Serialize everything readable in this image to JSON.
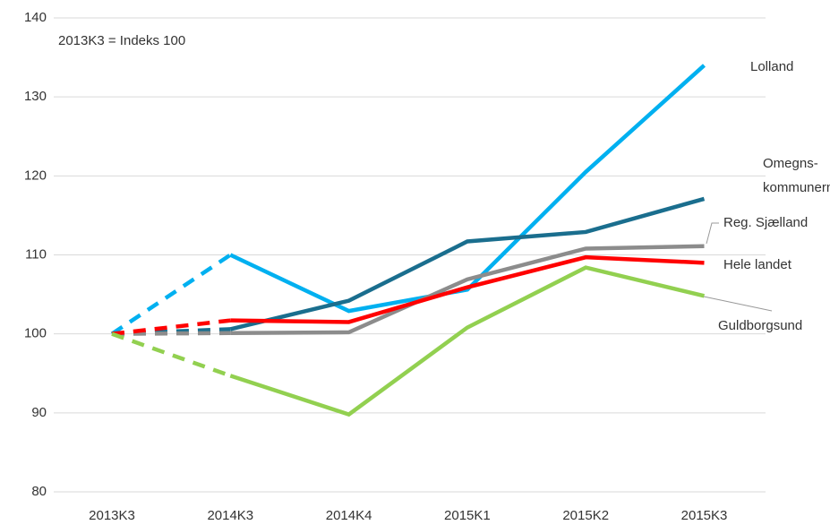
{
  "chart_data": {
    "type": "line",
    "annotation": "2013K3 = Indeks 100",
    "categories": [
      "2013K3",
      "2014K3",
      "2014K4",
      "2015K1",
      "2015K2",
      "2015K3"
    ],
    "ylim": [
      80,
      140
    ],
    "yticks": [
      80,
      90,
      100,
      110,
      120,
      130,
      140
    ],
    "grid": true,
    "dashed_first_segment": true,
    "series": [
      {
        "name": [
          "Lolland"
        ],
        "color": "#00b0f0",
        "values": [
          100,
          110,
          102.9,
          105.6,
          120.5,
          134
        ]
      },
      {
        "name": [
          "Omegns-",
          "kommunerne"
        ],
        "color": "#1a6e8e",
        "values": [
          100,
          100.6,
          104.2,
          111.7,
          112.9,
          117.1
        ]
      },
      {
        "name": [
          "Reg. Sjælland"
        ],
        "color": "#8c8c8c",
        "values": [
          100,
          100.1,
          100.2,
          106.9,
          110.8,
          111.1
        ]
      },
      {
        "name": [
          "Hele landet"
        ],
        "color": "#ff0000",
        "values": [
          100,
          101.7,
          101.5,
          105.9,
          109.7,
          109.0
        ]
      },
      {
        "name": [
          "Guldborgsund"
        ],
        "color": "#92d050",
        "values": [
          100,
          94.7,
          89.8,
          100.8,
          108.4,
          104.8
        ]
      }
    ]
  }
}
